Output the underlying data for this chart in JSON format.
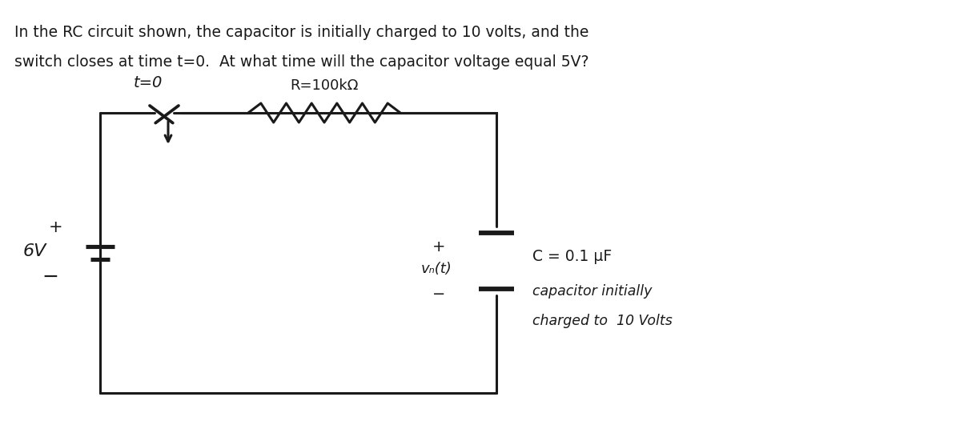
{
  "bg_color": "#ffffff",
  "text_color": "#1a1a1a",
  "line_color": "#1a1a1a",
  "title_line1": "In the RC circuit shown, the capacitor is initially charged to 10 volts, and the",
  "title_line2": "switch closes at time t=0.  At what time will the capacitor voltage equal 5V?",
  "label_t0": "t=0",
  "label_R": "R=100kΩ",
  "label_6V": "6V",
  "label_vc": "vₙ(t)",
  "label_C": "C = 0.1 μF",
  "label_cap1": "capacitor initially",
  "label_cap2": "charged to  10 Volts",
  "plus_battery": "+",
  "minus_battery": "−",
  "plus_cap": "+",
  "minus_cap": "−"
}
